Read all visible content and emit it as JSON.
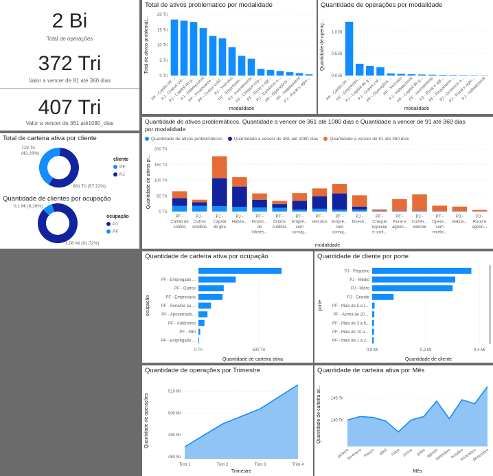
{
  "colors": {
    "light": "#118dff",
    "dark": "#12239e",
    "orange": "#e66c37",
    "axis": "#605e5c",
    "grid": "#e1e1e1",
    "area": "#8fc4f5"
  },
  "kpi": [
    {
      "value": "2 Bi",
      "label": "Total de operações"
    },
    {
      "value": "372 Tri",
      "label": "Valor a vencer de 91 até 360 dias"
    },
    {
      "value": "407 Tri",
      "label": "Valor a vencer de 361 até1080_dias"
    }
  ],
  "donut1": {
    "title": "Total de carteira ativa por cliente",
    "legend_title": "cliente",
    "label_small": "719 Tri\n(42,28%)",
    "label_large": "981 Tri (57,72%)",
    "chart_data": {
      "type": "pie",
      "categories": [
        "PF",
        "PJ"
      ],
      "values": [
        42.28,
        57.72
      ],
      "labels": [
        "719 Tri (42,28%)",
        "981 Tri (57,72%)"
      ]
    }
  },
  "donut2": {
    "title": "Quantidade de clientes por ocupação",
    "legend_title": "ocupação",
    "label_small": "0,1 Mi (8,28%)",
    "label_large": "1,08 Mi (91,72%)",
    "chart_data": {
      "type": "pie",
      "categories": [
        "PJ",
        "PF"
      ],
      "values": [
        91.72,
        8.28
      ],
      "labels": [
        "1,08 Mi (91,72%)",
        "0,1 Mi (8,28%)"
      ]
    }
  },
  "bar1": {
    "title": "Total de ativos problematico por modalidade",
    "ylabel_text": "Total de ativos problemát...",
    "xlabel_text": "modalidade",
    "chart_data": {
      "type": "bar",
      "categories": [
        "PF - Cartão de ...",
        "PJ - Outros cré...",
        "PJ - Capital de g...",
        "PJ - Habitacional",
        "PF - Financiame...",
        "PF - Outros créd...",
        "PJ - Veículos",
        "PF - Empréstim...",
        "PJ - Investimento",
        "PF - Cheque esp...",
        "PF - Rural e agr...",
        "PJ - Comércio e...",
        "PF - Operações ...",
        "PF - Habitacional",
        "PJ - Rural e agro..."
      ],
      "values": [
        18.3,
        18.0,
        17.5,
        15.5,
        13.0,
        12.2,
        9.3,
        6.5,
        5.5,
        2.2,
        1.8,
        1.5,
        1.1,
        0.8,
        0.4
      ],
      "yticks": [
        "0 Tri",
        "5 Tri",
        "10 Tri",
        "15 Tri",
        "20 Tri"
      ],
      "ylim": [
        0,
        20
      ]
    }
  },
  "bar2": {
    "title": "Quantidade de operações por modalidade",
    "ylabel_text": "Quantidade de operaç...",
    "xlabel_text": "modalidade",
    "chart_data": {
      "type": "bar",
      "categories": [
        "PF - Cartão de ...",
        "PF - Empréstim...",
        "PJ - Capital de g...",
        "PJ - Outros cré...",
        "PF - Operações ...",
        "PF - Veículos",
        "PJ - Habitacional",
        "PF - Capital de g...",
        "PF - Investimento",
        "PJ - Rural e agr...",
        "PF - Financiame...",
        "PJ - Comércio e...",
        "PJ - Rural e agro...",
        "PJ - Habitacional"
      ],
      "values": [
        1.23,
        0.27,
        0.22,
        0.19,
        0.05,
        0.04,
        0.03,
        0.025,
        0.02,
        0.015,
        0.012,
        0.01,
        0.008,
        0.005
      ],
      "yticks": [
        "0,0 Bi",
        "0,5 Bi",
        "1,0 Bi"
      ],
      "ylim": [
        0,
        1.4
      ]
    }
  },
  "stack": {
    "title_line1": "Quantidade de ativos problemáticos, Quantidade a vencer de 361 até 1080 dias e Quantidade a vencer de 91 até 360 dias",
    "title_line2": "por modalidade",
    "ylabel_text": "Quantidade de ativos pr...",
    "xlabel_text": "modalidade",
    "legend": [
      "Quantidade de ativos problemáticos",
      "Quantidade a vencer de 361 até 1080 dias",
      "Quantidade a vencer de 91 até 360 dias"
    ],
    "chart_data": {
      "type": "bar",
      "stacked": true,
      "categories": [
        [
          "PF -",
          "Cartão de",
          "crédito"
        ],
        [
          "PJ -",
          "Outros",
          "créditos"
        ],
        [
          "PJ -",
          "Capital",
          "de giro"
        ],
        [
          "PJ -",
          "Habita..."
        ],
        [
          "PF -",
          "Financ...",
          "de",
          "infraes..."
        ],
        [
          "PF -",
          "Outros",
          "créditos"
        ],
        [
          "PF -",
          "Empré...",
          "sem",
          "consig..."
        ],
        [
          "PF -",
          "Veículos"
        ],
        [
          "PF -",
          "Empré...",
          "com",
          "consig..."
        ],
        [
          "PJ -",
          "Investi..."
        ],
        [
          "PF -",
          "Cheque",
          "especial",
          "e cont..."
        ],
        [
          "PF -",
          "Rural e",
          "agroin..."
        ],
        [
          "PJ -",
          "Comér...",
          "exterior"
        ],
        [
          "PF -",
          "Opera...",
          "com",
          "recebi..."
        ],
        [
          "PJ -",
          "Habita..."
        ],
        [
          "PJ -",
          "Rural e",
          "agroin..."
        ]
      ],
      "series": [
        {
          "name": "Quantidade de ativos problemáticos",
          "values": [
            18,
            18,
            17,
            15,
            13,
            12,
            6,
            9,
            6,
            6,
            2,
            2,
            2,
            1,
            1,
            0
          ]
        },
        {
          "name": "Quantidade a vencer de 361 até 1080 dias",
          "values": [
            25,
            12,
            90,
            65,
            25,
            12,
            28,
            40,
            52,
            10,
            0,
            0,
            0,
            0,
            0,
            0
          ]
        },
        {
          "name": "Quantidade a vencer de 91 até 360 dias",
          "values": [
            22,
            8,
            70,
            30,
            20,
            10,
            25,
            25,
            30,
            36,
            5,
            38,
            53,
            18,
            15,
            5
          ]
        }
      ],
      "yticks": [
        "0 Tri",
        "50 Tri",
        "100 Tri",
        "150 Tri",
        "200 Tri"
      ],
      "ylim": [
        0,
        200
      ]
    }
  },
  "hbar1": {
    "title": "Quantidade de carteira ativa por ocupação",
    "ylabel_text": "ocupação",
    "xlabel_text": "Quantidade de carteira ativa",
    "chart_data": {
      "type": "bar",
      "orientation": "horizontal",
      "categories": [
        "-",
        "PF - Empregado ...",
        "PF - Outros",
        "PF - Empresário",
        "PF - Servidor ou ...",
        "PF - Aposentado...",
        "PF - Autônomo",
        "PF - MEI",
        "PF - Empregado ..."
      ],
      "values": [
        690,
        310,
        210,
        200,
        105,
        75,
        50,
        15,
        5
      ],
      "xticks": [
        "0 Tri",
        "500 Tri"
      ],
      "xlim": [
        0,
        900
      ]
    }
  },
  "hbar2": {
    "title": "Quantidade de cliente por porte",
    "ylabel_text": "porte",
    "xlabel_text": "Quantidade de cliente",
    "chart_data": {
      "type": "bar",
      "orientation": "horizontal",
      "categories": [
        "PJ - Pequeno",
        "PJ - Médio",
        "PJ - Micro",
        "PJ - Grande",
        "PF - Mais de 5 a 1...",
        "PF - Acima de 20 ...",
        "PF - Mais de 3 a 5...",
        "PF - Mais de 10 a ...",
        "PF - Mais de 1 a 2..."
      ],
      "values": [
        0.37,
        0.31,
        0.3,
        0.08,
        0.009,
        0.008,
        0.007,
        0.007,
        0.006
      ],
      "xticks": [
        "0,0 Mi",
        "0,2 Mi",
        "0,4 Mi"
      ],
      "xlim": [
        0,
        0.42
      ]
    }
  },
  "area1": {
    "title": "Quantidade de operações por Trimestre",
    "ylabel_text": "Quantidade de operações",
    "xlabel_text": "Trimestre",
    "chart_data": {
      "type": "area",
      "categories": [
        "Trim 1",
        "Trim 2",
        "Trim 3",
        "Trim 4"
      ],
      "values": [
        484.5,
        495,
        502,
        513
      ],
      "yticks": [
        "480 Mi",
        "490 Mi",
        "500 Mi",
        "510 Mi"
      ],
      "ylim": [
        479,
        514
      ]
    }
  },
  "area2": {
    "title": "Quantidade de carteira ativa por Mês",
    "ylabel_text": "Quantidade de carteira at...",
    "xlabel_text": "Mês",
    "chart_data": {
      "type": "area",
      "categories": [
        "janeiro",
        "fevereiro",
        "março",
        "abril",
        "maio",
        "junho",
        "julho",
        "agosto",
        "setembro",
        "outubro",
        "novembro",
        "dezembro"
      ],
      "values": [
        140.0,
        140.8,
        140.6,
        139.8,
        137.3,
        140.0,
        140.8,
        144.3,
        140.3,
        144.6,
        143.7,
        147.6
      ],
      "yticks": [
        "140 Tri",
        "145 Tri"
      ],
      "ylim": [
        134,
        148.5
      ]
    }
  }
}
